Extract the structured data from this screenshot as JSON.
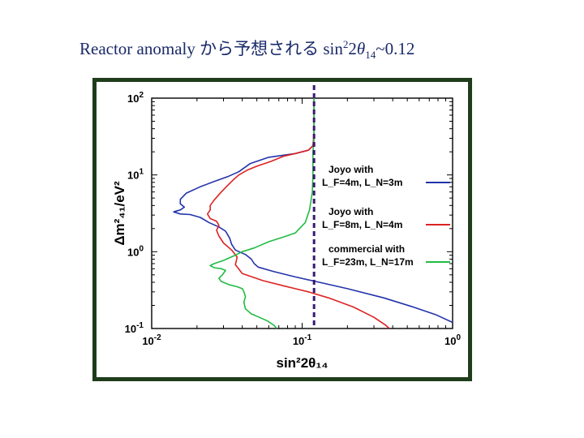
{
  "slide": {
    "title_prefix": "Reactor anomaly から予想される sin",
    "title_sup": "2",
    "title_mid": "2",
    "title_theta": "θ",
    "title_sub": "14",
    "title_suffix": "~0.12"
  },
  "chart_data": {
    "type": "line",
    "title": "",
    "xlabel": "sin²2θ₁₄",
    "ylabel": "Δm²₄₁/eV²",
    "x_scale": "log",
    "y_scale": "log",
    "xlim": [
      0.01,
      1
    ],
    "ylim": [
      0.1,
      100
    ],
    "x_ticks": [
      {
        "value": 0.01,
        "base": "10",
        "exp": "-2"
      },
      {
        "value": 0.1,
        "base": "10",
        "exp": "-1"
      },
      {
        "value": 1,
        "base": "10",
        "exp": "0"
      }
    ],
    "y_ticks": [
      {
        "value": 0.1,
        "base": "10",
        "exp": "-1"
      },
      {
        "value": 1,
        "base": "10",
        "exp": "0"
      },
      {
        "value": 10,
        "base": "10",
        "exp": "1"
      },
      {
        "value": 100,
        "base": "10",
        "exp": "2"
      }
    ],
    "grid": false,
    "legend_position": "right",
    "reference_line": {
      "x": 0.12,
      "color": "#3a1a6e",
      "style": "dashed"
    },
    "series": [
      {
        "name": "Joyo with L_F=4m, L_N=3m",
        "legend_line1": "Joyo with",
        "legend_line2": "L_F=4m, L_N=3m",
        "color": "#2233aa",
        "points": [
          [
            0.12,
            100
          ],
          [
            0.12,
            50
          ],
          [
            0.12,
            30
          ],
          [
            0.118,
            24
          ],
          [
            0.11,
            21
          ],
          [
            0.09,
            19
          ],
          [
            0.06,
            17
          ],
          [
            0.045,
            14
          ],
          [
            0.038,
            11
          ],
          [
            0.032,
            9.5
          ],
          [
            0.026,
            8.2
          ],
          [
            0.021,
            7
          ],
          [
            0.017,
            5.8
          ],
          [
            0.0155,
            4.8
          ],
          [
            0.0155,
            4.2
          ],
          [
            0.0165,
            3.8
          ],
          [
            0.0155,
            3.5
          ],
          [
            0.014,
            3.3
          ],
          [
            0.0155,
            3.1
          ],
          [
            0.018,
            3.05
          ],
          [
            0.021,
            2.8
          ],
          [
            0.024,
            2.4
          ],
          [
            0.028,
            2.1
          ],
          [
            0.031,
            1.85
          ],
          [
            0.033,
            1.5
          ],
          [
            0.034,
            1.25
          ],
          [
            0.036,
            1.05
          ],
          [
            0.042,
            0.92
          ],
          [
            0.046,
            0.8
          ],
          [
            0.048,
            0.7
          ],
          [
            0.051,
            0.63
          ],
          [
            0.065,
            0.55
          ],
          [
            0.09,
            0.47
          ],
          [
            0.13,
            0.4
          ],
          [
            0.2,
            0.33
          ],
          [
            0.35,
            0.25
          ],
          [
            0.55,
            0.19
          ],
          [
            0.78,
            0.15
          ],
          [
            1.0,
            0.12
          ]
        ]
      },
      {
        "name": "Joyo with L_F=8m, L_N=4m",
        "legend_line1": "Joyo with",
        "legend_line2": "L_F=8m, L_N=4m",
        "color": "#dd2222",
        "points": [
          [
            0.12,
            100
          ],
          [
            0.12,
            35
          ],
          [
            0.118,
            24
          ],
          [
            0.11,
            21
          ],
          [
            0.09,
            19
          ],
          [
            0.075,
            17.5
          ],
          [
            0.062,
            15
          ],
          [
            0.05,
            13
          ],
          [
            0.043,
            11.5
          ],
          [
            0.038,
            10
          ],
          [
            0.035,
            8.7
          ],
          [
            0.032,
            7.3
          ],
          [
            0.029,
            6
          ],
          [
            0.026,
            4.7
          ],
          [
            0.0245,
            4
          ],
          [
            0.0245,
            3.5
          ],
          [
            0.0235,
            3.1
          ],
          [
            0.0245,
            2.7
          ],
          [
            0.027,
            2.5
          ],
          [
            0.028,
            2.2
          ],
          [
            0.027,
            1.9
          ],
          [
            0.028,
            1.6
          ],
          [
            0.03,
            1.3
          ],
          [
            0.034,
            1.05
          ],
          [
            0.037,
            0.85
          ],
          [
            0.036,
            0.68
          ],
          [
            0.04,
            0.52
          ],
          [
            0.055,
            0.42
          ],
          [
            0.075,
            0.36
          ],
          [
            0.09,
            0.33
          ],
          [
            0.11,
            0.3
          ],
          [
            0.15,
            0.25
          ],
          [
            0.22,
            0.19
          ],
          [
            0.3,
            0.14
          ],
          [
            0.36,
            0.11
          ],
          [
            0.38,
            0.1
          ]
        ]
      },
      {
        "name": "commercial with L_F=23m, L_N=17m",
        "legend_line1": "commercial with",
        "legend_line2": "L_F=23m, L_N=17m",
        "color": "#22bb44",
        "points": [
          [
            0.12,
            100
          ],
          [
            0.12,
            30
          ],
          [
            0.118,
            20
          ],
          [
            0.118,
            10
          ],
          [
            0.117,
            6
          ],
          [
            0.112,
            3.5
          ],
          [
            0.105,
            2.4
          ],
          [
            0.09,
            1.75
          ],
          [
            0.075,
            1.55
          ],
          [
            0.06,
            1.35
          ],
          [
            0.048,
            1.12
          ],
          [
            0.04,
            1.0
          ],
          [
            0.035,
            0.88
          ],
          [
            0.03,
            0.77
          ],
          [
            0.026,
            0.7
          ],
          [
            0.0245,
            0.66
          ],
          [
            0.026,
            0.62
          ],
          [
            0.029,
            0.6
          ],
          [
            0.031,
            0.57
          ],
          [
            0.0295,
            0.5
          ],
          [
            0.028,
            0.45
          ],
          [
            0.029,
            0.41
          ],
          [
            0.033,
            0.37
          ],
          [
            0.037,
            0.35
          ],
          [
            0.04,
            0.33
          ],
          [
            0.041,
            0.3
          ],
          [
            0.042,
            0.26
          ],
          [
            0.041,
            0.22
          ],
          [
            0.042,
            0.18
          ],
          [
            0.046,
            0.155
          ],
          [
            0.052,
            0.14
          ],
          [
            0.059,
            0.125
          ],
          [
            0.065,
            0.11
          ],
          [
            0.068,
            0.1
          ]
        ]
      }
    ]
  }
}
